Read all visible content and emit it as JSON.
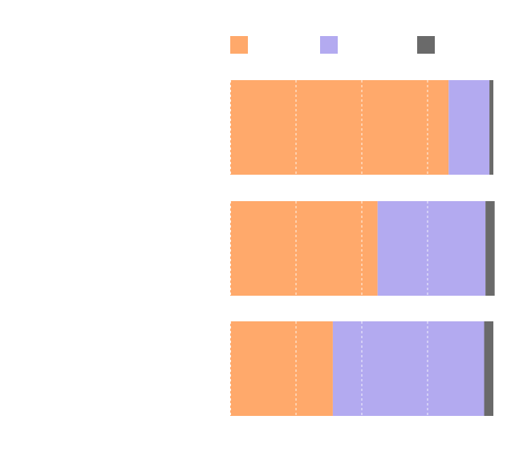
{
  "chart_data": {
    "type": "bar",
    "orientation": "horizontal",
    "stacked": true,
    "normalized": true,
    "title": "",
    "xlabel": "",
    "ylabel": "",
    "xlim": [
      0,
      1
    ],
    "gridlines_x": [
      0,
      0.25,
      0.5,
      0.75
    ],
    "grid": true,
    "legend_position": "top",
    "categories": [
      "",
      "",
      ""
    ],
    "series": [
      {
        "color": "#ffa96b",
        "values": [
          0.83,
          0.56,
          0.39
        ]
      },
      {
        "color": "#b3aaf0",
        "values": [
          0.155,
          0.41,
          0.575
        ]
      },
      {
        "color": "#6a6a6a",
        "values": [
          0.015,
          0.035,
          0.035
        ]
      }
    ]
  }
}
